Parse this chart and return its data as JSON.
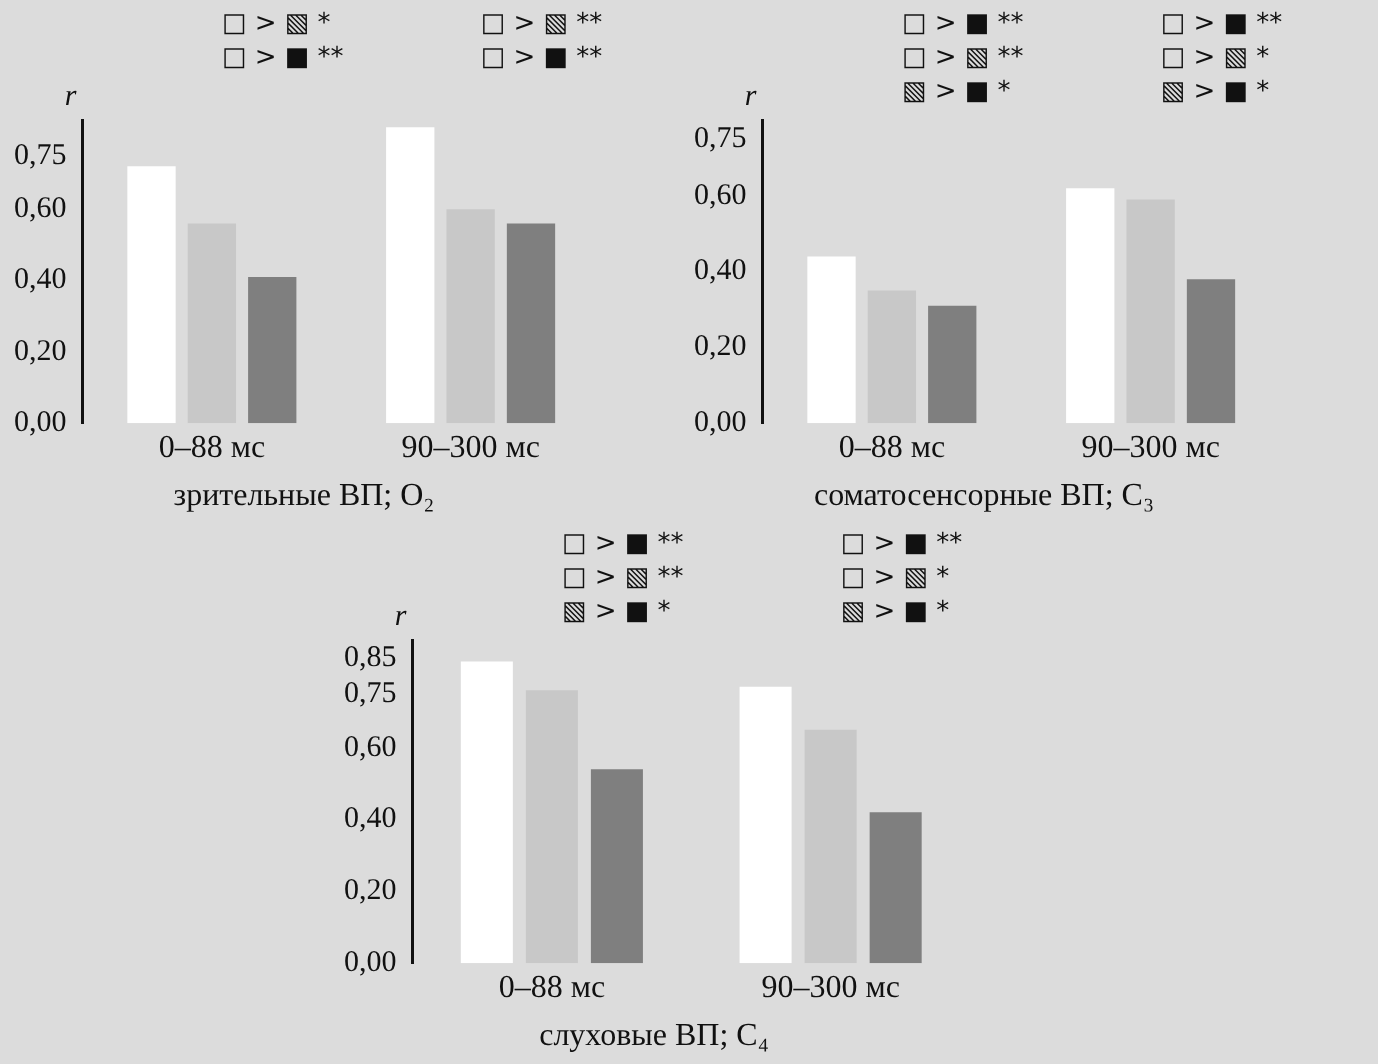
{
  "chart_data": [
    {
      "type": "bar",
      "title": "зрительные ВП; O₂",
      "ylabel": "r",
      "categories": [
        "0–88 мс",
        "90–300 мс"
      ],
      "series": [
        {
          "color": "#ffffff",
          "values": [
            0.72,
            0.83
          ]
        },
        {
          "color": "#c8c8c8",
          "values": [
            0.56,
            0.6
          ]
        },
        {
          "color": "#7f7f7f",
          "values": [
            0.41,
            0.56
          ]
        }
      ],
      "ylim": [
        0,
        0.85
      ],
      "yticks": [
        {
          "value": 0,
          "label": "0,00"
        },
        {
          "value": 0.2,
          "label": "0,20"
        },
        {
          "value": 0.4,
          "label": "0,40"
        },
        {
          "value": 0.6,
          "label": "0,60"
        },
        {
          "value": 0.75,
          "label": "0,75"
        }
      ],
      "annotations": [
        "□ > ▧ *",
        "□ > ■ **",
        "□ > ▧ **",
        "□ > ■ **"
      ],
      "grid": false,
      "legend": false
    },
    {
      "type": "bar",
      "title": "соматосенсорные ВП; C₃",
      "ylabel": "r",
      "categories": [
        "0–88 мс",
        "90–300 мс"
      ],
      "series": [
        {
          "color": "#ffffff",
          "values": [
            0.44,
            0.62
          ]
        },
        {
          "color": "#c8c8c8",
          "values": [
            0.35,
            0.59
          ]
        },
        {
          "color": "#7f7f7f",
          "values": [
            0.31,
            0.38
          ]
        }
      ],
      "ylim": [
        0,
        0.8
      ],
      "yticks": [
        {
          "value": 0,
          "label": "0,00"
        },
        {
          "value": 0.2,
          "label": "0,20"
        },
        {
          "value": 0.4,
          "label": "0,40"
        },
        {
          "value": 0.6,
          "label": "0,60"
        },
        {
          "value": 0.75,
          "label": "0,75"
        }
      ],
      "annotations": [
        "□ > ■ **",
        "□ > ▧ **",
        "▧ > ■ *",
        "□ > ■ **",
        "□ > ▧ *",
        "▧ > ■ *"
      ],
      "grid": false,
      "legend": false
    },
    {
      "type": "bar",
      "title": "слуховые ВП; C₄",
      "ylabel": "r",
      "categories": [
        "0–88 мс",
        "90–300 мс"
      ],
      "series": [
        {
          "color": "#ffffff",
          "values": [
            0.84,
            0.77
          ]
        },
        {
          "color": "#c8c8c8",
          "values": [
            0.76,
            0.65
          ]
        },
        {
          "color": "#7f7f7f",
          "values": [
            0.54,
            0.42
          ]
        }
      ],
      "ylim": [
        0,
        0.9
      ],
      "yticks": [
        {
          "value": 0,
          "label": "0,00"
        },
        {
          "value": 0.2,
          "label": "0,20"
        },
        {
          "value": 0.4,
          "label": "0,40"
        },
        {
          "value": 0.6,
          "label": "0,60"
        },
        {
          "value": 0.75,
          "label": "0,75"
        },
        {
          "value": 0.85,
          "label": "0,85"
        }
      ],
      "annotations": [
        "□ > ■ **",
        "□ > ▧ **",
        "▧ > ■ *",
        "□ > ■ **",
        "□ > ▧ *",
        "▧ > ■ *"
      ],
      "grid": false,
      "legend": false
    }
  ]
}
